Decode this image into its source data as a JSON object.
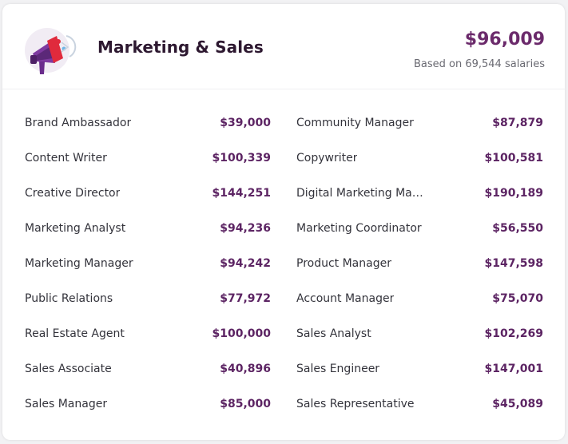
{
  "header": {
    "title": "Marketing & Sales",
    "average_salary": "$96,009",
    "based_on": "Based on 69,544 salaries",
    "icon": "megaphone-icon"
  },
  "colors": {
    "accent": "#6b2a6b",
    "title": "#2d1830",
    "text": "#33333b",
    "muted": "#6a6a72"
  },
  "jobs": [
    {
      "title": "Brand Ambassador",
      "salary": "$39,000"
    },
    {
      "title": "Community Manager",
      "salary": "$87,879"
    },
    {
      "title": "Content Writer",
      "salary": "$100,339"
    },
    {
      "title": "Copywriter",
      "salary": "$100,581"
    },
    {
      "title": "Creative Director",
      "salary": "$144,251"
    },
    {
      "title": "Digital Marketing Manager",
      "salary": "$190,189"
    },
    {
      "title": "Marketing Analyst",
      "salary": "$94,236"
    },
    {
      "title": "Marketing Coordinator",
      "salary": "$56,550"
    },
    {
      "title": "Marketing Manager",
      "salary": "$94,242"
    },
    {
      "title": "Product Manager",
      "salary": "$147,598"
    },
    {
      "title": "Public Relations",
      "salary": "$77,972"
    },
    {
      "title": "Account Manager",
      "salary": "$75,070"
    },
    {
      "title": "Real Estate Agent",
      "salary": "$100,000"
    },
    {
      "title": "Sales Analyst",
      "salary": "$102,269"
    },
    {
      "title": "Sales Associate",
      "salary": "$40,896"
    },
    {
      "title": "Sales Engineer",
      "salary": "$147,001"
    },
    {
      "title": "Sales Manager",
      "salary": "$85,000"
    },
    {
      "title": "Sales Representative",
      "salary": "$45,089"
    }
  ]
}
